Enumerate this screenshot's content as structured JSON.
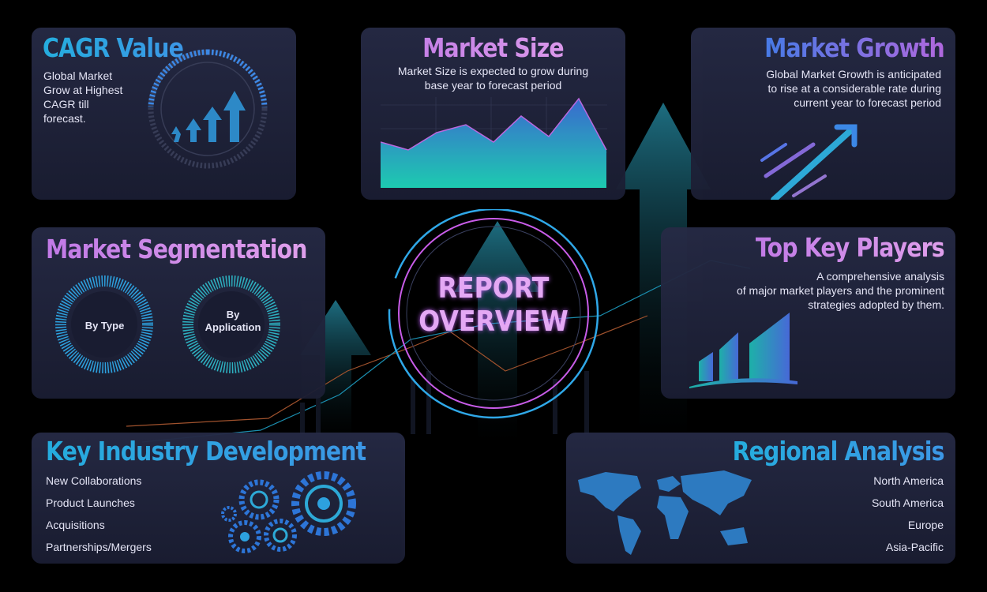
{
  "center": {
    "line1": "REPORT",
    "line2": "OVERVIEW"
  },
  "cagr": {
    "title": "CAGR Value",
    "text": "Global Market Grow at Highest CAGR till forecast.",
    "lines": [
      "Global Market",
      "Grow at Highest",
      "CAGR till",
      "forecast."
    ]
  },
  "market_size": {
    "title": "Market Size",
    "lines": [
      "Market Size is expected to grow during",
      "base year to forecast period"
    ]
  },
  "market_growth": {
    "title": "Market Growth",
    "lines": [
      "Global Market Growth is anticipated",
      "to rise at  a considerable rate during",
      "current year to forecast period"
    ]
  },
  "segmentation": {
    "title": "Market Segmentation",
    "by_type": "By Type",
    "by_application_1": "By",
    "by_application_2": "Application"
  },
  "key_players": {
    "title": "Top Key Players",
    "lines": [
      "A comprehensive analysis",
      "of major market players and the prominent",
      "strategies adopted by them."
    ]
  },
  "industry": {
    "title": "Key Industry Development",
    "items": [
      "New Collaborations",
      "Product Launches",
      "Acquisitions",
      "Partnerships/Mergers"
    ]
  },
  "regional": {
    "title": "Regional Analysis",
    "items": [
      "North America",
      "South America",
      "Europe",
      "Asia-Pacific"
    ]
  },
  "colors": {
    "cyan": "#1fd3e0",
    "blue": "#3f8ef0",
    "pink": "#d98ef2",
    "purple": "#b45ce8"
  }
}
